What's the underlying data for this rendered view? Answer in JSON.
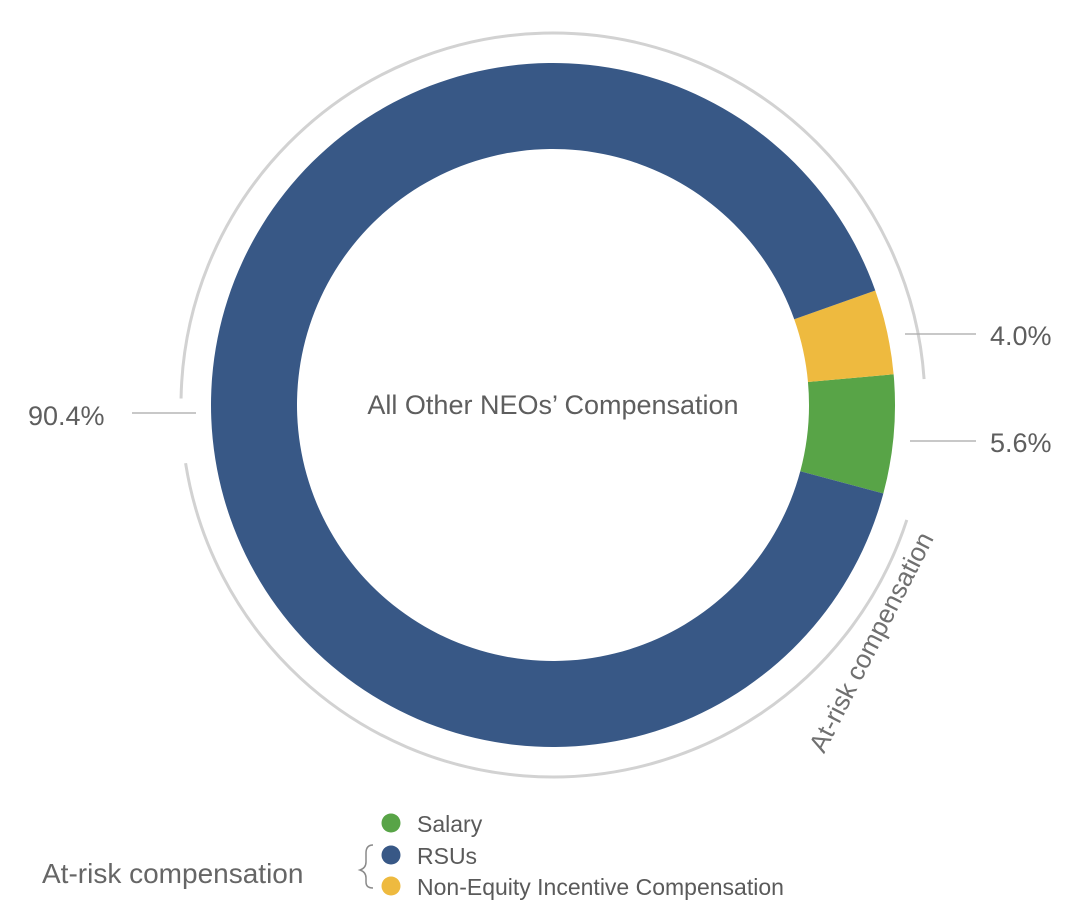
{
  "chart_data": {
    "type": "pie",
    "title": "All Other NEOs’ Compensation",
    "slices": [
      {
        "name": "Salary",
        "value": 5.6,
        "label": "5.6%",
        "color": "#58a447"
      },
      {
        "name": "Non-Equity Incentive Compensation",
        "value": 4.0,
        "label": "4.0%",
        "color": "#eeba3f"
      },
      {
        "name": "RSUs",
        "value": 90.4,
        "label": "90.4%",
        "color": "#385886"
      }
    ],
    "arc_annotation": "At-risk compensation",
    "legend": {
      "heading": "At-risk compensation",
      "items": [
        {
          "label": "Salary",
          "color": "#58a447"
        },
        {
          "label": "RSUs",
          "color": "#385886"
        },
        {
          "label": "Non-Equity Incentive Compensation",
          "color": "#eeba3f"
        }
      ]
    }
  }
}
